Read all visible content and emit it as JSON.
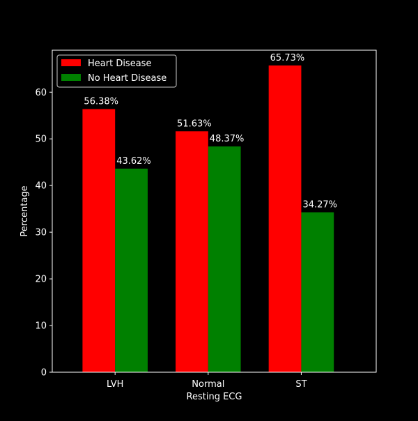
{
  "chart_data": {
    "type": "bar",
    "title": "",
    "xlabel": "Resting ECG",
    "ylabel": "Percentage",
    "categories": [
      "LVH",
      "Normal",
      "ST"
    ],
    "ylim": [
      0,
      69
    ],
    "yticks": [
      0,
      10,
      20,
      30,
      40,
      50,
      60
    ],
    "grid": false,
    "legend_position": "top-left",
    "series": [
      {
        "name": "Heart Disease",
        "color": "#ff0000",
        "values": [
          56.38,
          51.63,
          65.73
        ],
        "labels": [
          "56.38%",
          "51.63%",
          "65.73%"
        ]
      },
      {
        "name": "No Heart Disease",
        "color": "#008000",
        "values": [
          43.62,
          48.37,
          34.27
        ],
        "labels": [
          "43.62%",
          "48.37%",
          "34.27%"
        ]
      }
    ]
  }
}
